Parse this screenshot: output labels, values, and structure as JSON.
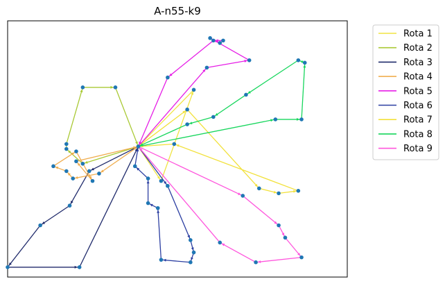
{
  "chart_data": {
    "type": "line",
    "title": "A-n55-k9",
    "xlabel": "",
    "ylabel": "",
    "axes_ticks": "hidden",
    "grid": false,
    "legend_placement": "outside-right-top",
    "marker_color": "#1f77b4",
    "depot": {
      "x": 38,
      "y": 51
    },
    "xlim": [
      -2,
      102
    ],
    "ylim": [
      -2,
      102
    ],
    "routes": [
      {
        "name": "Rota 1",
        "color": "#f0e442",
        "points": [
          [
            38,
            51
          ],
          [
            45,
            37
          ],
          [
            55,
            74
          ],
          [
            38,
            51
          ]
        ]
      },
      {
        "name": "Rota 2",
        "color": "#a9c934",
        "points": [
          [
            38,
            51
          ],
          [
            21,
            44
          ],
          [
            16,
            50
          ],
          [
            16,
            52
          ],
          [
            21,
            75
          ],
          [
            31,
            75
          ],
          [
            38,
            51
          ]
        ]
      },
      {
        "name": "Rota 3",
        "color": "#1f2a6b",
        "points": [
          [
            38,
            51
          ],
          [
            23,
            41
          ],
          [
            17,
            27
          ],
          [
            8,
            19
          ],
          [
            -2,
            2
          ],
          [
            20,
            2
          ],
          [
            38,
            51
          ]
        ]
      },
      {
        "name": "Rota 4",
        "color": "#f0ad4e",
        "points": [
          [
            38,
            51
          ],
          [
            26,
            40
          ],
          [
            18,
            38
          ],
          [
            16,
            41
          ],
          [
            12,
            43
          ],
          [
            19,
            49
          ],
          [
            24,
            37
          ],
          [
            19,
            45
          ],
          [
            38,
            51
          ]
        ]
      },
      {
        "name": "Rota 5",
        "color": "#e61ee6",
        "points": [
          [
            38,
            51
          ],
          [
            59,
            83
          ],
          [
            72,
            86
          ],
          [
            60,
            95
          ],
          [
            63,
            93
          ],
          [
            64,
            94
          ],
          [
            61,
            94
          ],
          [
            47,
            79
          ],
          [
            38,
            51
          ]
        ]
      },
      {
        "name": "Rota 6",
        "color": "#2b3ea1",
        "points": [
          [
            38,
            51
          ],
          [
            47,
            35
          ],
          [
            54,
            13
          ],
          [
            55,
            8
          ],
          [
            54,
            4
          ],
          [
            45,
            5
          ],
          [
            44,
            26
          ],
          [
            41,
            28
          ],
          [
            41,
            38
          ],
          [
            37,
            43
          ],
          [
            38,
            51
          ]
        ]
      },
      {
        "name": "Rota 7",
        "color": "#f2e13b",
        "points": [
          [
            38,
            51
          ],
          [
            53,
            66
          ],
          [
            75,
            34
          ],
          [
            81,
            32
          ],
          [
            87,
            33
          ],
          [
            49,
            52
          ],
          [
            38,
            51
          ]
        ]
      },
      {
        "name": "Rota 8",
        "color": "#16d65c",
        "points": [
          [
            38,
            51
          ],
          [
            80,
            62
          ],
          [
            88,
            62
          ],
          [
            89,
            85
          ],
          [
            87,
            86
          ],
          [
            71,
            72
          ],
          [
            61,
            63
          ],
          [
            53,
            60
          ],
          [
            38,
            51
          ]
        ]
      },
      {
        "name": "Rota 9",
        "color": "#ff55dd",
        "points": [
          [
            38,
            51
          ],
          [
            70,
            31
          ],
          [
            81,
            19
          ],
          [
            83,
            14
          ],
          [
            88,
            6
          ],
          [
            74,
            4
          ],
          [
            63,
            12
          ],
          [
            38,
            51
          ]
        ]
      }
    ]
  }
}
